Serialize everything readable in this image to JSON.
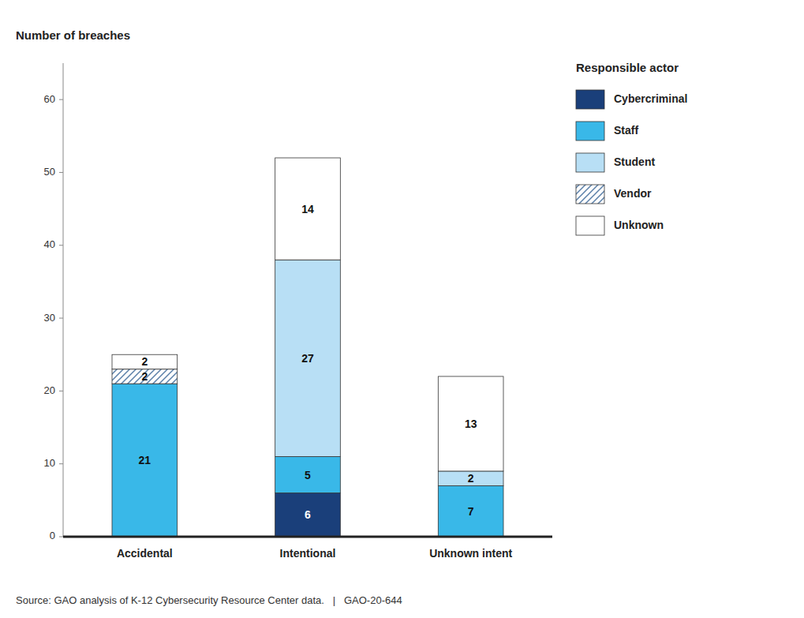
{
  "chart_data": {
    "type": "bar",
    "stacked": true,
    "ylabel": "Number of breaches",
    "categories": [
      "Accidental",
      "Intentional",
      "Unknown intent"
    ],
    "series": [
      {
        "name": "Cybercriminal",
        "color": "#1a3f7a",
        "values": [
          0,
          6,
          0
        ]
      },
      {
        "name": "Staff",
        "color": "#39b8e8",
        "values": [
          21,
          5,
          7
        ]
      },
      {
        "name": "Student",
        "color": "#b8dff5",
        "values": [
          0,
          27,
          2
        ]
      },
      {
        "name": "Vendor",
        "color": "#ffffff",
        "values": [
          2,
          0,
          0
        ]
      },
      {
        "name": "Unknown",
        "color": "#ffffff",
        "values": [
          2,
          14,
          13
        ]
      }
    ],
    "ylim": [
      0,
      65
    ],
    "yticks": [
      0,
      10,
      20,
      30,
      40,
      50,
      60
    ],
    "grid": false,
    "legend": "right",
    "data_labels": true,
    "legend_title": "Responsible actor",
    "annotations": [
      "Source: GAO analysis of K-12 Cybersecurity Resource Center data.   |   GAO-20-644"
    ]
  }
}
